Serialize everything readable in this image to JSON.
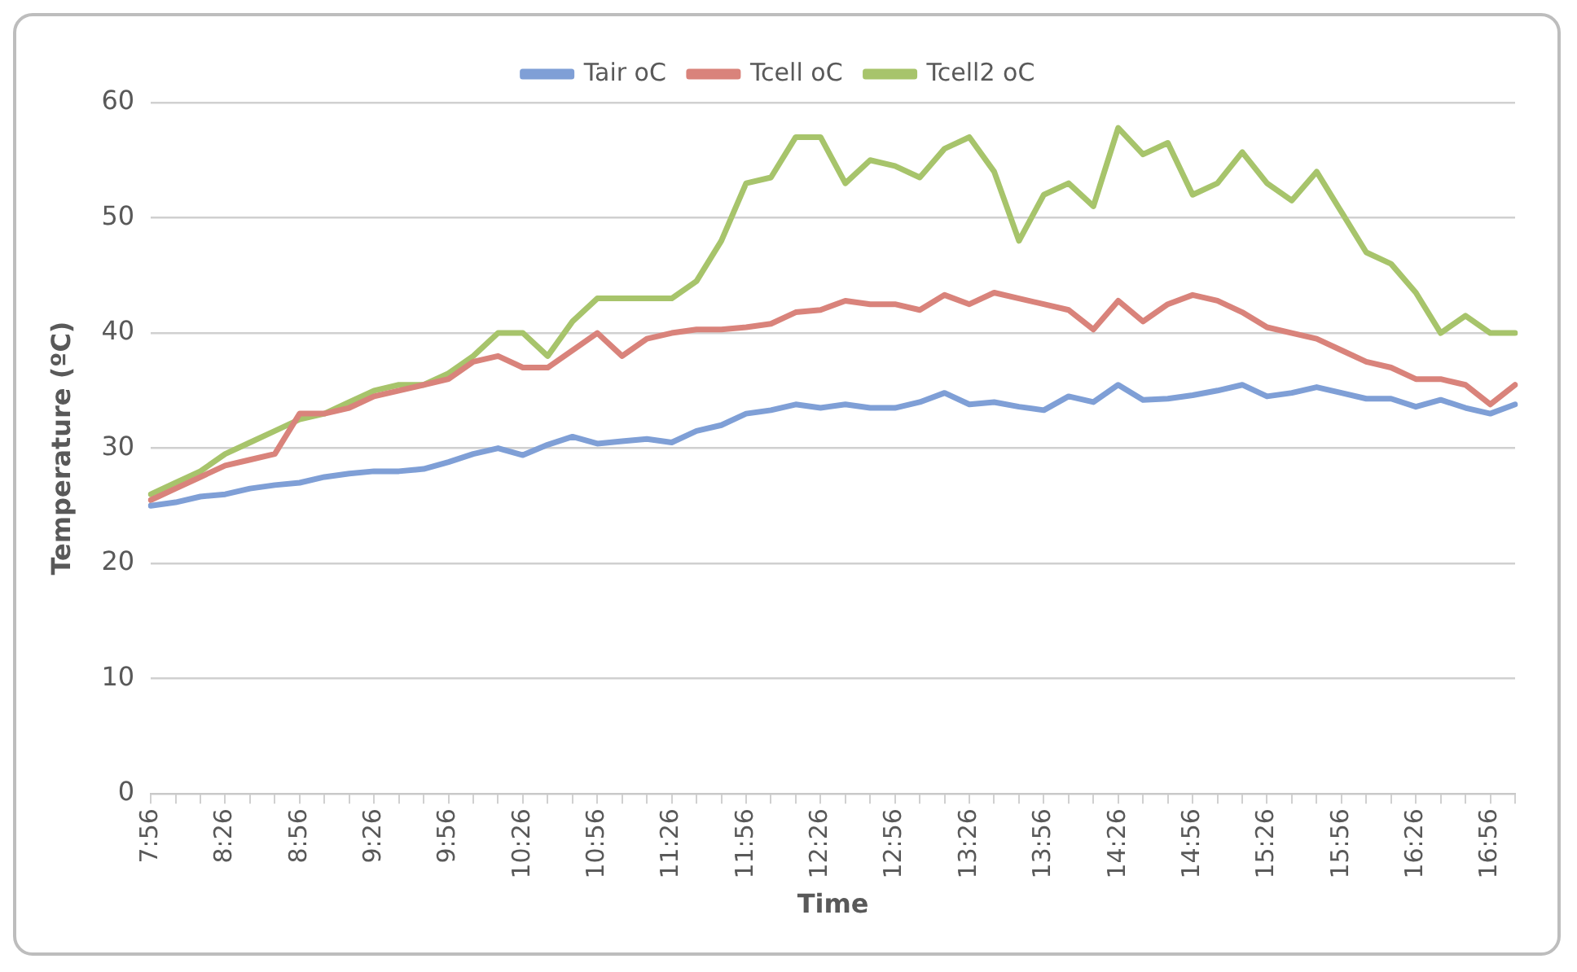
{
  "chart_data": {
    "type": "line",
    "xlabel": "Time",
    "ylabel": "Temperature (ºC)",
    "categories": [
      "7:56",
      null,
      null,
      "8:26",
      null,
      null,
      "8:56",
      null,
      null,
      "9:26",
      null,
      null,
      "9:56",
      null,
      null,
      "10:26",
      null,
      null,
      "10:56",
      null,
      null,
      "11:26",
      null,
      null,
      "11:56",
      null,
      null,
      "12:26",
      null,
      null,
      "12:56",
      null,
      null,
      "13:26",
      null,
      null,
      "13:56",
      null,
      null,
      "14:26",
      null,
      null,
      "14:56",
      null,
      null,
      "15:26",
      null,
      null,
      "15:56",
      null,
      null,
      "16:26",
      null,
      null,
      "16:56",
      null
    ],
    "series": [
      {
        "name": "Tair oC",
        "color": "#7f9fd6",
        "values": [
          25,
          25.3,
          25.8,
          26,
          26.5,
          26.8,
          27,
          27.5,
          27.8,
          28,
          28,
          28.2,
          28.8,
          29.5,
          30,
          29.4,
          30.3,
          31,
          30.4,
          30.6,
          30.8,
          30.5,
          31.5,
          32,
          33,
          33.3,
          33.8,
          33.5,
          33.8,
          33.5,
          33.5,
          34,
          34.8,
          33.8,
          34,
          33.6,
          33.3,
          34.5,
          34,
          35.5,
          34.2,
          34.3,
          34.6,
          35,
          35.5,
          34.5,
          34.8,
          35.3,
          34.8,
          34.3,
          34.3,
          33.6,
          34.2,
          33.5,
          33,
          33.8
        ]
      },
      {
        "name": "Tcell oC",
        "color": "#d9837b",
        "values": [
          25.5,
          26.5,
          27.5,
          28.5,
          29,
          29.5,
          33,
          33,
          33.5,
          34.5,
          35,
          35.5,
          36,
          37.5,
          38,
          37,
          37,
          38.5,
          40,
          38,
          39.5,
          40,
          40.3,
          40.3,
          40.5,
          40.8,
          41.8,
          42,
          42.8,
          42.5,
          42.5,
          42,
          43.3,
          42.5,
          43.5,
          43,
          42.5,
          42,
          40.3,
          42.8,
          41,
          42.5,
          43.3,
          42.8,
          41.8,
          40.5,
          40,
          39.5,
          38.5,
          37.5,
          37,
          36,
          36,
          35.5,
          33.8,
          35.5
        ]
      },
      {
        "name": "Tcell2 oC",
        "color": "#a7c46b",
        "values": [
          26,
          27,
          28,
          29.5,
          30.5,
          31.5,
          32.5,
          33,
          34,
          35,
          35.5,
          35.5,
          36.5,
          38,
          40,
          40,
          38,
          41,
          43,
          43,
          43,
          43,
          44.5,
          48,
          53,
          53.5,
          57,
          57,
          53,
          55,
          54.5,
          53.5,
          56,
          57,
          54,
          48,
          52,
          53,
          51,
          57.8,
          55.5,
          56.5,
          52,
          53,
          55.7,
          53,
          51.5,
          54,
          50.5,
          47,
          46,
          43.5,
          40,
          41.5,
          40,
          40
        ]
      }
    ],
    "ylim": [
      0,
      60
    ],
    "yticks": [
      0,
      10,
      20,
      30,
      40,
      50,
      60
    ],
    "grid": "y",
    "legend": "top",
    "marker": "none",
    "line_style": "solid"
  }
}
